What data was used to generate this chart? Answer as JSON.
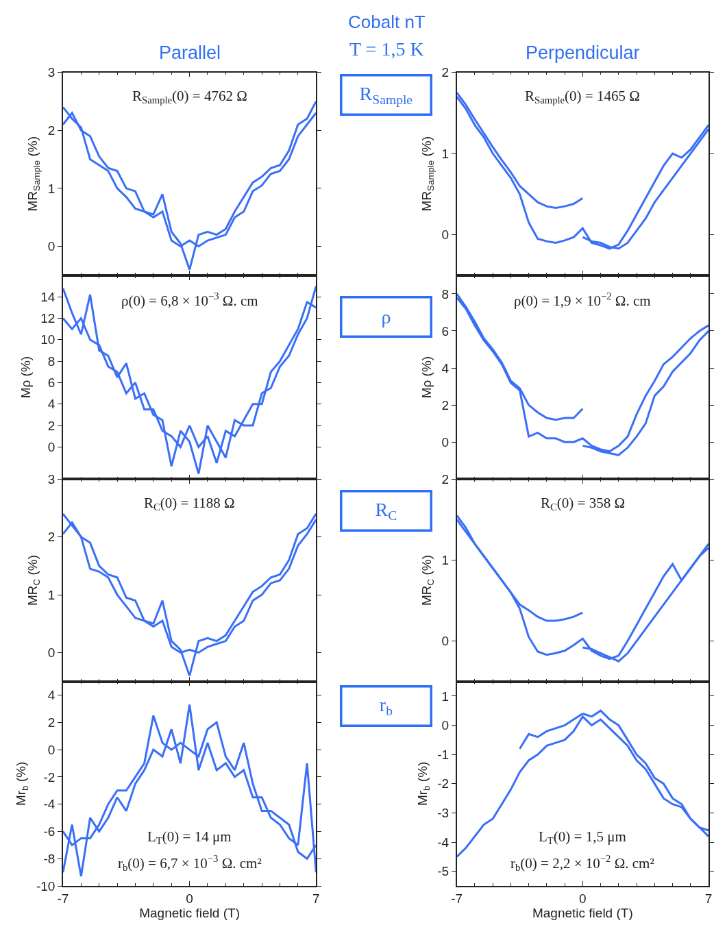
{
  "chart_data": [
    {
      "type": "other",
      "title": "Cobalt nT",
      "subtitle": "T = 1,5 K"
    },
    {
      "type": "line",
      "title": "Parallel",
      "ylabel": "MR$_{Sample}$ (%)",
      "annotations": [
        "R$_{Sample}$(0) = 4762 Ω",
        "R$_{Sample}$"
      ],
      "xlim": [
        -7,
        7
      ],
      "xticks": [
        -7,
        0,
        7
      ],
      "ylim": [
        -0.5,
        3
      ],
      "yticks": [
        0,
        1,
        2,
        3
      ],
      "tick_labels": "y",
      "x": [
        -7,
        -6.5,
        -6,
        -5.5,
        -5,
        -4.5,
        -4,
        -3.5,
        -3,
        -2.5,
        -2,
        -1.5,
        -1,
        -0.5,
        0,
        0.5,
        1,
        1.5,
        2,
        2.5,
        3,
        3.5,
        4,
        4.5,
        5,
        5.5,
        6,
        6.5,
        7
      ],
      "series": [
        {
          "color": "#3a6ff7",
          "values": [
            2.4,
            2.2,
            2.05,
            1.5,
            1.4,
            1.3,
            1.0,
            0.85,
            0.65,
            0.6,
            0.55,
            0.9,
            0.25,
            0.05,
            -0.4,
            0.2,
            0.25,
            0.2,
            0.3,
            0.6,
            0.85,
            1.1,
            1.2,
            1.35,
            1.4,
            1.65,
            2.1,
            2.2,
            2.5
          ]
        },
        {
          "color": "#3a6ff7",
          "values": [
            2.1,
            2.3,
            2.0,
            1.9,
            1.55,
            1.35,
            1.3,
            1.0,
            0.95,
            0.6,
            0.5,
            0.6,
            0.1,
            0.0,
            0.1,
            0.0,
            0.1,
            0.15,
            0.2,
            0.5,
            0.6,
            0.95,
            1.05,
            1.25,
            1.3,
            1.5,
            1.9,
            2.1,
            2.3
          ]
        }
      ]
    },
    {
      "type": "line",
      "title": "Perpendicular",
      "ylabel": "MR$_{Sample}$ (%)",
      "annotations": [
        "R$_{Sample}$(0) = 1465 Ω"
      ],
      "xlim": [
        -7,
        7
      ],
      "xticks": [
        -7,
        0,
        7
      ],
      "ylim": [
        -0.5,
        2
      ],
      "yticks": [
        0,
        1,
        2
      ],
      "tick_labels": "y",
      "x": [
        -7,
        -6.5,
        -6,
        -5.5,
        -5,
        -4.5,
        -4,
        -3.5,
        -3,
        -2.5,
        -2,
        -1.5,
        -1,
        -0.5,
        0,
        0.5,
        1,
        1.5,
        2,
        2.5,
        3,
        3.5,
        4,
        4.5,
        5,
        5.5,
        6,
        6.5,
        7
      ],
      "series": [
        {
          "color": "#3a6ff7",
          "values": [
            1.7,
            1.55,
            1.35,
            1.2,
            1.0,
            0.85,
            0.7,
            0.5,
            0.15,
            -0.05,
            -0.08,
            -0.1,
            -0.07,
            -0.03,
            0.08,
            -0.1,
            -0.13,
            -0.17,
            -0.12,
            0.05,
            0.25,
            0.45,
            0.65,
            0.85,
            1.0,
            0.95,
            1.05,
            1.2,
            1.35
          ]
        },
        {
          "color": "#3a6ff7",
          "x": [
            -7,
            -6.5,
            -6,
            -5.5,
            -5,
            -4.5,
            -4,
            -3.5,
            -3,
            -2.5,
            -2,
            -1.5,
            -1,
            -0.5,
            0
          ],
          "values": [
            1.75,
            1.6,
            1.42,
            1.25,
            1.08,
            0.92,
            0.77,
            0.6,
            0.5,
            0.4,
            0.35,
            0.33,
            0.35,
            0.38,
            0.45
          ]
        },
        {
          "color": "#3a6ff7",
          "x": [
            0,
            0.5,
            1,
            1.5,
            2,
            2.5,
            3,
            3.5,
            4,
            4.5,
            5,
            5.5,
            6,
            6.5,
            7
          ],
          "values": [
            -0.03,
            -0.08,
            -0.1,
            -0.15,
            -0.17,
            -0.1,
            0.05,
            0.2,
            0.4,
            0.55,
            0.7,
            0.85,
            1.0,
            1.15,
            1.3
          ]
        }
      ]
    },
    {
      "type": "line",
      "ylabel": "Mρ (%)",
      "annotations": [
        "ρ(0) = 6,8 × 10$^{−3}$ Ω. cm",
        "ρ"
      ],
      "xlim": [
        -7,
        7
      ],
      "xticks": [
        -7,
        0,
        7
      ],
      "ylim": [
        -3,
        16
      ],
      "yticks": [
        0,
        2,
        4,
        6,
        8,
        10,
        12,
        14
      ],
      "tick_labels": "y",
      "x": [
        -7,
        -6.5,
        -6,
        -5.5,
        -5,
        -4.5,
        -4,
        -3.5,
        -3,
        -2.5,
        -2,
        -1.5,
        -1,
        -0.5,
        0,
        0.5,
        1,
        1.5,
        2,
        2.5,
        3,
        3.5,
        4,
        4.5,
        5,
        5.5,
        6,
        6.5,
        7
      ],
      "series": [
        {
          "color": "#3a6ff7",
          "values": [
            14.8,
            12.5,
            10.5,
            14.2,
            9.0,
            8.5,
            6.5,
            7.8,
            4.5,
            5.0,
            3.0,
            2.5,
            -1.8,
            1.5,
            0.5,
            -2.5,
            2.0,
            0.5,
            -1.0,
            2.5,
            2.0,
            2.0,
            5.0,
            5.5,
            7.5,
            8.5,
            10.5,
            12.0,
            15.0
          ]
        },
        {
          "color": "#3a6ff7",
          "values": [
            12.0,
            11.0,
            12.0,
            10.0,
            9.5,
            7.5,
            7.0,
            5.0,
            6.0,
            3.5,
            3.5,
            1.5,
            1.0,
            0.0,
            2.0,
            0.0,
            1.0,
            -1.5,
            1.5,
            1.0,
            2.5,
            4.0,
            4.0,
            7.0,
            8.0,
            9.5,
            11.0,
            13.5,
            13.0
          ]
        }
      ]
    },
    {
      "type": "line",
      "ylabel": "Mρ (%)",
      "annotations": [
        "ρ(0) = 1,9 × 10$^{−2}$ Ω. cm"
      ],
      "xlim": [
        -7,
        7
      ],
      "xticks": [
        -7,
        0,
        7
      ],
      "ylim": [
        -2,
        9
      ],
      "yticks": [
        0,
        2,
        4,
        6,
        8
      ],
      "tick_labels": "y",
      "x": [
        -7,
        -6.5,
        -6,
        -5.5,
        -5,
        -4.5,
        -4,
        -3.5,
        -3,
        -2.5,
        -2,
        -1.5,
        -1,
        -0.5,
        0,
        0.5,
        1,
        1.5,
        2,
        2.5,
        3,
        3.5,
        4,
        4.5,
        5,
        5.5,
        6,
        6.5,
        7
      ],
      "series": [
        {
          "color": "#3a6ff7",
          "values": [
            7.8,
            7.2,
            6.3,
            5.5,
            4.9,
            4.2,
            3.2,
            2.8,
            0.3,
            0.5,
            0.2,
            0.2,
            0.0,
            0.0,
            0.2,
            -0.2,
            -0.4,
            -0.5,
            -0.2,
            0.3,
            1.5,
            2.5,
            3.3,
            4.2,
            4.6,
            5.1,
            5.6,
            6.0,
            6.3
          ]
        },
        {
          "color": "#3a6ff7",
          "x": [
            -7,
            -6.5,
            -6,
            -5.5,
            -5,
            -4.5,
            -4,
            -3.5,
            -3,
            -2.5,
            -2,
            -1.5,
            -1,
            -0.5,
            0
          ],
          "values": [
            8.0,
            7.3,
            6.5,
            5.6,
            5.0,
            4.3,
            3.3,
            2.9,
            2.0,
            1.6,
            1.3,
            1.2,
            1.3,
            1.3,
            1.8
          ]
        },
        {
          "color": "#3a6ff7",
          "x": [
            0,
            0.5,
            1,
            1.5,
            2,
            2.5,
            3,
            3.5,
            4,
            4.5,
            5,
            5.5,
            6,
            6.5,
            7
          ],
          "values": [
            -0.2,
            -0.3,
            -0.5,
            -0.6,
            -0.7,
            -0.3,
            0.3,
            1.0,
            2.5,
            3.0,
            3.8,
            4.3,
            4.8,
            5.5,
            6.0
          ]
        }
      ]
    },
    {
      "type": "line",
      "ylabel": "MR$_{C}$ (%)",
      "annotations": [
        "R$_{C}$(0) = 1188 Ω",
        "R$_{C}$"
      ],
      "xlim": [
        -7,
        7
      ],
      "xticks": [
        -7,
        0,
        7
      ],
      "ylim": [
        -0.5,
        3
      ],
      "yticks": [
        0,
        1,
        2,
        3
      ],
      "tick_labels": "y",
      "x": [
        -7,
        -6.5,
        -6,
        -5.5,
        -5,
        -4.5,
        -4,
        -3.5,
        -3,
        -2.5,
        -2,
        -1.5,
        -1,
        -0.5,
        0,
        0.5,
        1,
        1.5,
        2,
        2.5,
        3,
        3.5,
        4,
        4.5,
        5,
        5.5,
        6,
        6.5,
        7
      ],
      "series": [
        {
          "color": "#3a6ff7",
          "values": [
            2.4,
            2.2,
            2.0,
            1.45,
            1.4,
            1.3,
            1.0,
            0.8,
            0.6,
            0.55,
            0.5,
            0.9,
            0.2,
            0.05,
            -0.4,
            0.2,
            0.25,
            0.2,
            0.3,
            0.55,
            0.8,
            1.05,
            1.15,
            1.3,
            1.35,
            1.6,
            2.05,
            2.15,
            2.4
          ]
        },
        {
          "color": "#3a6ff7",
          "values": [
            2.05,
            2.25,
            2.0,
            1.9,
            1.5,
            1.35,
            1.3,
            0.95,
            0.9,
            0.55,
            0.45,
            0.55,
            0.1,
            0.0,
            0.05,
            0.0,
            0.1,
            0.15,
            0.2,
            0.45,
            0.55,
            0.9,
            1.0,
            1.2,
            1.25,
            1.45,
            1.85,
            2.05,
            2.3
          ]
        }
      ]
    },
    {
      "type": "line",
      "ylabel": "MR$_{C}$ (%)",
      "annotations": [
        "R$_{C}$(0) = 358 Ω"
      ],
      "xlim": [
        -7,
        7
      ],
      "xticks": [
        -7,
        0,
        7
      ],
      "ylim": [
        -0.5,
        2
      ],
      "yticks": [
        0,
        1,
        2
      ],
      "tick_labels": "y",
      "x": [
        -7,
        -6.5,
        -6,
        -5.5,
        -5,
        -4.5,
        -4,
        -3.5,
        -3,
        -2.5,
        -2,
        -1.5,
        -1,
        -0.5,
        0,
        0.5,
        1,
        1.5,
        2,
        2.5,
        3,
        3.5,
        4,
        4.5,
        5,
        5.5,
        6,
        6.5,
        7
      ],
      "series": [
        {
          "color": "#3a6ff7",
          "values": [
            1.55,
            1.4,
            1.2,
            1.05,
            0.9,
            0.75,
            0.6,
            0.4,
            0.05,
            -0.13,
            -0.17,
            -0.15,
            -0.12,
            -0.05,
            0.03,
            -0.12,
            -0.18,
            -0.22,
            -0.18,
            0.0,
            0.2,
            0.4,
            0.6,
            0.8,
            0.95,
            0.75,
            0.9,
            1.05,
            1.2
          ]
        },
        {
          "color": "#3a6ff7",
          "x": [
            -7,
            -6.5,
            -6,
            -5.5,
            -5,
            -4.5,
            -4,
            -3.5,
            -3,
            -2.5,
            -2,
            -1.5,
            -1,
            -0.5,
            0
          ],
          "values": [
            1.5,
            1.35,
            1.2,
            1.05,
            0.9,
            0.75,
            0.6,
            0.45,
            0.38,
            0.3,
            0.25,
            0.25,
            0.27,
            0.3,
            0.35
          ]
        },
        {
          "color": "#3a6ff7",
          "x": [
            0,
            0.5,
            1,
            1.5,
            2,
            2.5,
            3,
            3.5,
            4,
            4.5,
            5,
            5.5,
            6,
            6.5,
            7
          ],
          "values": [
            -0.08,
            -0.1,
            -0.15,
            -0.2,
            -0.25,
            -0.15,
            0.0,
            0.15,
            0.3,
            0.45,
            0.6,
            0.75,
            0.9,
            1.05,
            1.15
          ]
        }
      ]
    },
    {
      "type": "line",
      "xlabel": "Magnetic field (T)",
      "ylabel": "Mr$_{b}$ (%)",
      "annotations": [
        "L$_{T}$(0) = 14 μm",
        "r$_{b}$(0) = 6,7 × 10$^{−3}$ Ω. cm²",
        "r$_{b}$"
      ],
      "xlim": [
        -7,
        7
      ],
      "xticks": [
        -7,
        0,
        7
      ],
      "ylim": [
        -10,
        5
      ],
      "yticks": [
        -10,
        -8,
        -6,
        -4,
        -2,
        0,
        2,
        4
      ],
      "x": [
        -7,
        -6.5,
        -6,
        -5.5,
        -5,
        -4.5,
        -4,
        -3.5,
        -3,
        -2.5,
        -2,
        -1.5,
        -1,
        -0.5,
        0,
        0.5,
        1,
        1.5,
        2,
        2.5,
        3,
        3.5,
        4,
        4.5,
        5,
        5.5,
        6,
        6.5,
        7
      ],
      "series": [
        {
          "color": "#3a6ff7",
          "values": [
            -9.0,
            -5.5,
            -9.3,
            -5.0,
            -6.0,
            -5.0,
            -3.5,
            -4.5,
            -2.5,
            -1.5,
            0.0,
            -0.5,
            1.5,
            -1.0,
            3.3,
            -1.5,
            0.5,
            -1.5,
            -1.0,
            -2.0,
            -1.5,
            -3.5,
            -3.5,
            -5.0,
            -5.5,
            -6.5,
            -7.0,
            -1.0,
            -9.0
          ]
        },
        {
          "color": "#3a6ff7",
          "values": [
            -6.0,
            -7.0,
            -6.5,
            -6.5,
            -5.5,
            -4.0,
            -3.0,
            -3.0,
            -2.0,
            -1.0,
            2.5,
            0.5,
            0.0,
            0.5,
            0.0,
            -0.5,
            1.5,
            2.0,
            -0.5,
            -1.5,
            0.5,
            -2.5,
            -4.5,
            -4.5,
            -5.0,
            -5.5,
            -7.5,
            -8.0,
            -7.0
          ]
        }
      ]
    },
    {
      "type": "line",
      "xlabel": "Magnetic field (T)",
      "ylabel": "Mr$_{b}$ (%)",
      "annotations": [
        "L$_{T}$(0) = 1,5 μm",
        "r$_{b}$(0) = 2,2 × 10$^{−2}$ Ω. cm²"
      ],
      "xlim": [
        -7,
        7
      ],
      "xticks": [
        -7,
        0,
        7
      ],
      "ylim": [
        -5.5,
        1.5
      ],
      "yticks": [
        -5,
        -4,
        -3,
        -2,
        -1,
        0,
        1
      ],
      "x": [
        -7,
        -6.5,
        -6,
        -5.5,
        -5,
        -4.5,
        -4,
        -3.5,
        -3,
        -2.5,
        -2,
        -1.5,
        -1,
        -0.5,
        0,
        0.5,
        1,
        1.5,
        2,
        2.5,
        3,
        3.5,
        4,
        4.5,
        5,
        5.5,
        6,
        6.5,
        7
      ],
      "series": [
        {
          "color": "#3a6ff7",
          "values": [
            -4.5,
            -4.2,
            -3.8,
            -3.4,
            -3.2,
            -2.7,
            -2.2,
            -1.6,
            -1.2,
            -1.0,
            -0.7,
            -0.6,
            -0.5,
            -0.2,
            0.3,
            0.0,
            0.2,
            -0.1,
            -0.4,
            -0.7,
            -1.2,
            -1.5,
            -2.0,
            -2.5,
            -2.7,
            -2.8,
            -3.2,
            -3.5,
            -3.8
          ]
        },
        {
          "color": "#3a6ff7",
          "x": [
            -3.5,
            -3,
            -2.5,
            -2,
            -1.5,
            -1,
            -0.5,
            0
          ],
          "values": [
            -0.8,
            -0.3,
            -0.4,
            -0.2,
            -0.1,
            0.0,
            0.2,
            0.4
          ]
        },
        {
          "color": "#3a6ff7",
          "x": [
            0,
            0.5,
            1,
            1.5,
            2,
            2.5,
            3,
            3.5,
            4,
            4.5,
            5,
            5.5,
            6,
            6.5,
            7
          ],
          "values": [
            0.4,
            0.3,
            0.5,
            0.2,
            0.0,
            -0.5,
            -1.0,
            -1.3,
            -1.8,
            -2.0,
            -2.5,
            -2.7,
            -3.2,
            -3.5,
            -3.6
          ]
        }
      ]
    }
  ]
}
